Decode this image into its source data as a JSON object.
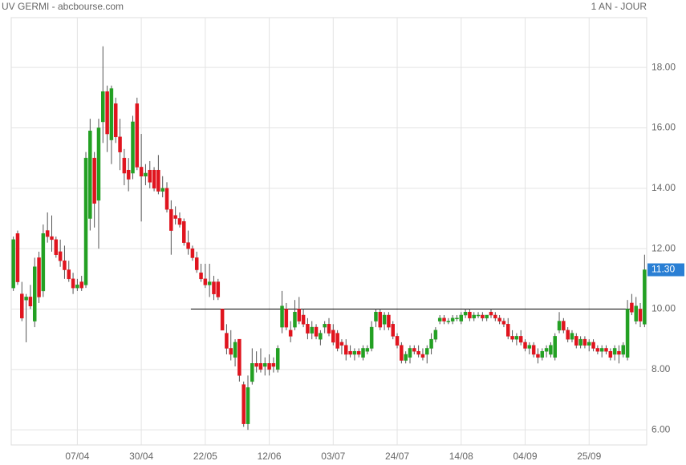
{
  "chart_data": {
    "type": "candlestick",
    "title": "UV GERMI - abcbourse.com",
    "subtitle": "1 AN - JOUR",
    "categories": [
      null,
      null,
      null,
      null,
      null,
      null,
      null,
      null,
      null,
      null,
      null,
      null,
      null,
      null,
      null,
      "07/04",
      null,
      null,
      null,
      null,
      null,
      null,
      null,
      null,
      null,
      null,
      null,
      null,
      null,
      null,
      "30/04",
      null,
      null,
      null,
      null,
      null,
      null,
      null,
      null,
      null,
      null,
      null,
      null,
      null,
      null,
      "22/05",
      null,
      null,
      null,
      null,
      null,
      null,
      null,
      null,
      null,
      null,
      null,
      null,
      null,
      null,
      "12/06",
      null,
      null,
      null,
      null,
      null,
      null,
      null,
      null,
      null,
      null,
      null,
      null,
      null,
      null,
      "03/07",
      null,
      null,
      null,
      null,
      null,
      null,
      null,
      null,
      null,
      null,
      null,
      null,
      null,
      null,
      "24/07",
      null,
      null,
      null,
      null,
      null,
      null,
      null,
      null,
      null,
      null,
      null,
      null,
      null,
      null,
      "14/08",
      null,
      null,
      null,
      null,
      null,
      null,
      null,
      null,
      null,
      null,
      null,
      null,
      null,
      null,
      "04/09",
      null,
      null,
      null,
      null,
      null,
      null,
      null,
      null,
      null,
      null,
      null,
      null,
      null,
      null,
      "25/09",
      null,
      null,
      null,
      null,
      null,
      null,
      null,
      null,
      null,
      null,
      null,
      null,
      null
    ],
    "open": [
      10.7,
      12.5,
      10.5,
      10.3,
      10.4,
      9.6,
      11.7,
      10.6,
      12.6,
      12.4,
      12.3,
      11.9,
      11.6,
      11.3,
      11.0,
      10.7,
      10.9,
      10.8,
      13.0,
      15.0,
      13.6,
      16.2,
      17.2,
      15.6,
      16.8,
      15.7,
      15.0,
      14.6,
      14.5,
      16.8,
      14.7,
      14.4,
      14.6,
      14.6,
      14.6,
      13.9,
      14.0,
      13.3,
      13.1,
      13.0,
      12.9,
      12.2,
      12.0,
      11.7,
      11.2,
      11.0,
      10.8,
      10.9,
      10.9,
      10.0,
      9.2,
      8.7,
      8.4,
      9.0,
      7.5,
      6.2,
      7.6,
      8.2,
      8.2,
      8.1,
      8.2,
      8.2,
      8.0,
      9.4,
      10.0,
      9.3,
      9.4,
      10.0,
      9.8,
      9.5,
      9.2,
      9.4,
      9.0,
      9.4,
      9.5,
      9.3,
      9.2,
      8.9,
      8.8,
      8.6,
      8.5,
      8.6,
      8.4,
      8.6,
      8.7,
      9.6,
      9.9,
      9.5,
      9.8,
      9.5,
      9.1,
      8.8,
      8.3,
      8.4,
      8.7,
      8.6,
      8.5,
      8.5,
      8.7,
      9.0,
      9.6,
      9.7,
      9.6,
      9.6,
      9.7,
      9.6,
      9.8,
      9.9,
      9.7,
      9.8,
      9.8,
      9.7,
      9.9,
      9.8,
      9.7,
      9.6,
      9.5,
      9.1,
      9.0,
      9.1,
      8.9,
      8.7,
      8.8,
      8.5,
      8.4,
      8.6,
      8.5,
      8.4,
      9.3,
      9.6,
      9.3,
      9.0,
      9.1,
      8.8,
      9.0,
      8.8,
      8.9,
      8.7,
      8.6,
      8.7,
      8.6,
      8.5,
      8.6,
      8.5,
      8.4,
      10.2,
      9.6,
      10.0,
      9.5
    ],
    "high": [
      12.4,
      12.6,
      10.9,
      10.5,
      10.8,
      11.7,
      11.9,
      12.8,
      13.2,
      13.1,
      12.4,
      12.3,
      12.1,
      11.6,
      11.2,
      11.0,
      11.1,
      15.2,
      16.3,
      15.2,
      16.3,
      18.7,
      17.4,
      17.4,
      17.0,
      16.3,
      15.3,
      15.0,
      16.4,
      17.0,
      15.8,
      14.8,
      14.9,
      14.7,
      15.1,
      14.4,
      14.2,
      13.6,
      13.4,
      13.2,
      13.0,
      12.6,
      12.1,
      11.9,
      11.5,
      11.5,
      11.5,
      11.1,
      11.0,
      10.0,
      9.5,
      9.3,
      9.0,
      9.0,
      7.6,
      7.8,
      8.7,
      8.6,
      8.7,
      8.4,
      8.5,
      8.4,
      8.8,
      10.6,
      10.2,
      9.6,
      10.3,
      10.4,
      10.0,
      9.7,
      9.6,
      9.5,
      9.3,
      9.6,
      9.7,
      9.5,
      9.3,
      9.0,
      9.0,
      8.8,
      8.7,
      8.7,
      8.8,
      8.8,
      9.6,
      10.0,
      10.0,
      9.9,
      9.9,
      9.6,
      9.2,
      8.9,
      8.6,
      8.8,
      8.8,
      8.8,
      8.7,
      8.8,
      9.2,
      9.4,
      9.8,
      9.8,
      9.7,
      9.8,
      9.8,
      9.9,
      10.0,
      10.0,
      9.9,
      9.9,
      9.9,
      9.8,
      10.0,
      9.9,
      9.8,
      9.7,
      9.7,
      9.3,
      9.2,
      9.3,
      9.0,
      8.9,
      8.9,
      8.7,
      8.7,
      8.8,
      8.9,
      9.2,
      9.9,
      9.7,
      9.4,
      9.3,
      9.2,
      9.1,
      9.1,
      9.0,
      9.0,
      8.8,
      8.8,
      8.8,
      8.7,
      8.8,
      8.8,
      8.9,
      10.3,
      10.5,
      10.4,
      10.2,
      11.8
    ],
    "low": [
      10.6,
      10.8,
      9.6,
      8.9,
      10.0,
      9.4,
      10.2,
      10.4,
      12.2,
      11.9,
      11.7,
      11.4,
      11.0,
      10.9,
      10.5,
      10.6,
      10.6,
      10.7,
      12.6,
      12.7,
      12.0,
      15.5,
      15.2,
      14.8,
      15.5,
      14.6,
      14.1,
      13.9,
      14.3,
      14.6,
      12.9,
      14.1,
      14.0,
      13.9,
      13.8,
      13.7,
      13.2,
      11.8,
      12.8,
      12.7,
      12.1,
      11.8,
      11.6,
      11.2,
      10.9,
      10.7,
      10.4,
      10.3,
      10.3,
      9.3,
      8.5,
      8.3,
      8.1,
      7.6,
      6.1,
      6.0,
      7.5,
      7.9,
      7.9,
      7.8,
      7.8,
      7.9,
      7.9,
      9.2,
      9.3,
      8.9,
      9.3,
      9.5,
      9.4,
      9.0,
      9.0,
      9.0,
      8.8,
      9.2,
      9.1,
      8.8,
      8.6,
      8.5,
      8.3,
      8.4,
      8.3,
      8.4,
      8.3,
      8.5,
      8.6,
      9.4,
      9.3,
      9.3,
      9.3,
      9.0,
      8.7,
      8.2,
      8.2,
      8.2,
      8.5,
      8.4,
      8.3,
      8.2,
      8.5,
      8.9,
      9.5,
      9.5,
      9.5,
      9.5,
      9.6,
      9.5,
      9.7,
      9.6,
      9.6,
      9.7,
      9.6,
      9.6,
      9.7,
      9.6,
      9.5,
      9.4,
      9.0,
      8.9,
      8.8,
      8.8,
      8.6,
      8.5,
      8.4,
      8.2,
      8.3,
      8.4,
      8.4,
      8.3,
      9.2,
      9.2,
      8.9,
      8.9,
      8.7,
      8.7,
      8.7,
      8.6,
      8.6,
      8.5,
      8.4,
      8.5,
      8.3,
      8.3,
      8.2,
      8.4,
      8.3,
      9.8,
      9.5,
      9.4,
      9.4
    ],
    "close": [
      12.3,
      10.9,
      9.7,
      10.4,
      10.1,
      11.4,
      10.4,
      12.5,
      12.4,
      12.3,
      11.8,
      11.6,
      11.3,
      11.0,
      10.7,
      10.8,
      10.7,
      15.0,
      15.9,
      13.5,
      16.0,
      17.2,
      15.8,
      17.3,
      15.7,
      15.2,
      14.5,
      14.3,
      16.2,
      14.7,
      14.4,
      14.5,
      14.2,
      14.0,
      13.9,
      14.0,
      13.3,
      12.6,
      13.0,
      12.8,
      12.2,
      12.0,
      11.7,
      11.3,
      11.0,
      10.8,
      10.9,
      10.5,
      10.4,
      9.3,
      8.7,
      8.5,
      8.9,
      7.8,
      6.2,
      7.4,
      8.2,
      8.1,
      8.0,
      8.2,
      8.0,
      8.1,
      8.7,
      10.1,
      9.4,
      9.1,
      9.9,
      9.6,
      9.5,
      9.2,
      9.4,
      9.1,
      9.2,
      9.5,
      9.2,
      8.9,
      8.7,
      8.8,
      8.5,
      8.5,
      8.6,
      8.5,
      8.7,
      8.7,
      9.4,
      9.9,
      9.4,
      9.8,
      9.4,
      9.1,
      8.8,
      8.3,
      8.5,
      8.7,
      8.6,
      8.5,
      8.4,
      8.7,
      9.0,
      9.3,
      9.7,
      9.6,
      9.6,
      9.7,
      9.7,
      9.8,
      9.9,
      9.7,
      9.8,
      9.8,
      9.7,
      9.8,
      9.8,
      9.7,
      9.6,
      9.5,
      9.1,
      9.0,
      9.1,
      8.9,
      8.7,
      8.8,
      8.5,
      8.4,
      8.6,
      8.7,
      8.8,
      9.1,
      9.6,
      9.3,
      9.0,
      9.2,
      8.8,
      9.0,
      8.8,
      8.9,
      8.7,
      8.6,
      8.7,
      8.6,
      8.4,
      8.7,
      8.5,
      8.8,
      10.0,
      9.9,
      10.1,
      9.6,
      11.3
    ],
    "up_color": "#23a023",
    "down_color": "#e0141e",
    "last_label": "11.30",
    "last_label_color": "#2a7fd4",
    "reference_line": 10,
    "ylim": [
      5.5,
      19.65
    ],
    "yticks": [
      {
        "value": 6,
        "label": "6.00"
      },
      {
        "value": 8,
        "label": "8.00"
      },
      {
        "value": 10,
        "label": "10.00"
      },
      {
        "value": 12,
        "label": "12.00"
      },
      {
        "value": 14,
        "label": "14.00"
      },
      {
        "value": 16,
        "label": "16.00"
      },
      {
        "value": 18,
        "label": "18.00"
      }
    ],
    "grid": true
  }
}
